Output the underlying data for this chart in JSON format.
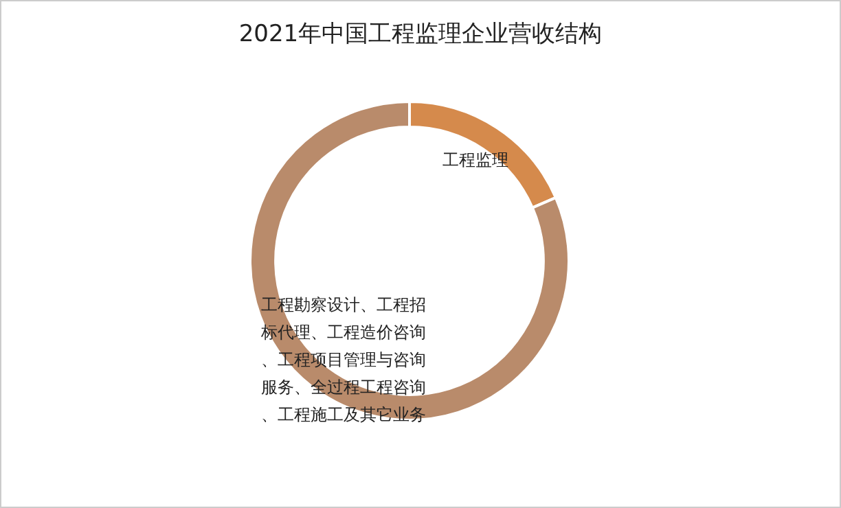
{
  "chart_data": {
    "type": "donut",
    "title": "2021年中国工程监理企业营收结构",
    "categories": [
      "工程监理",
      "工程勘察设计、工程招标代理、工程造价咨询、工程项目管理与咨询服务、全过程工程咨询、工程施工及其它业务"
    ],
    "values": [
      18.5,
      81.5
    ],
    "colors": [
      "#d58a4c",
      "#b98b6b"
    ],
    "data_labels": false,
    "legend": false
  }
}
